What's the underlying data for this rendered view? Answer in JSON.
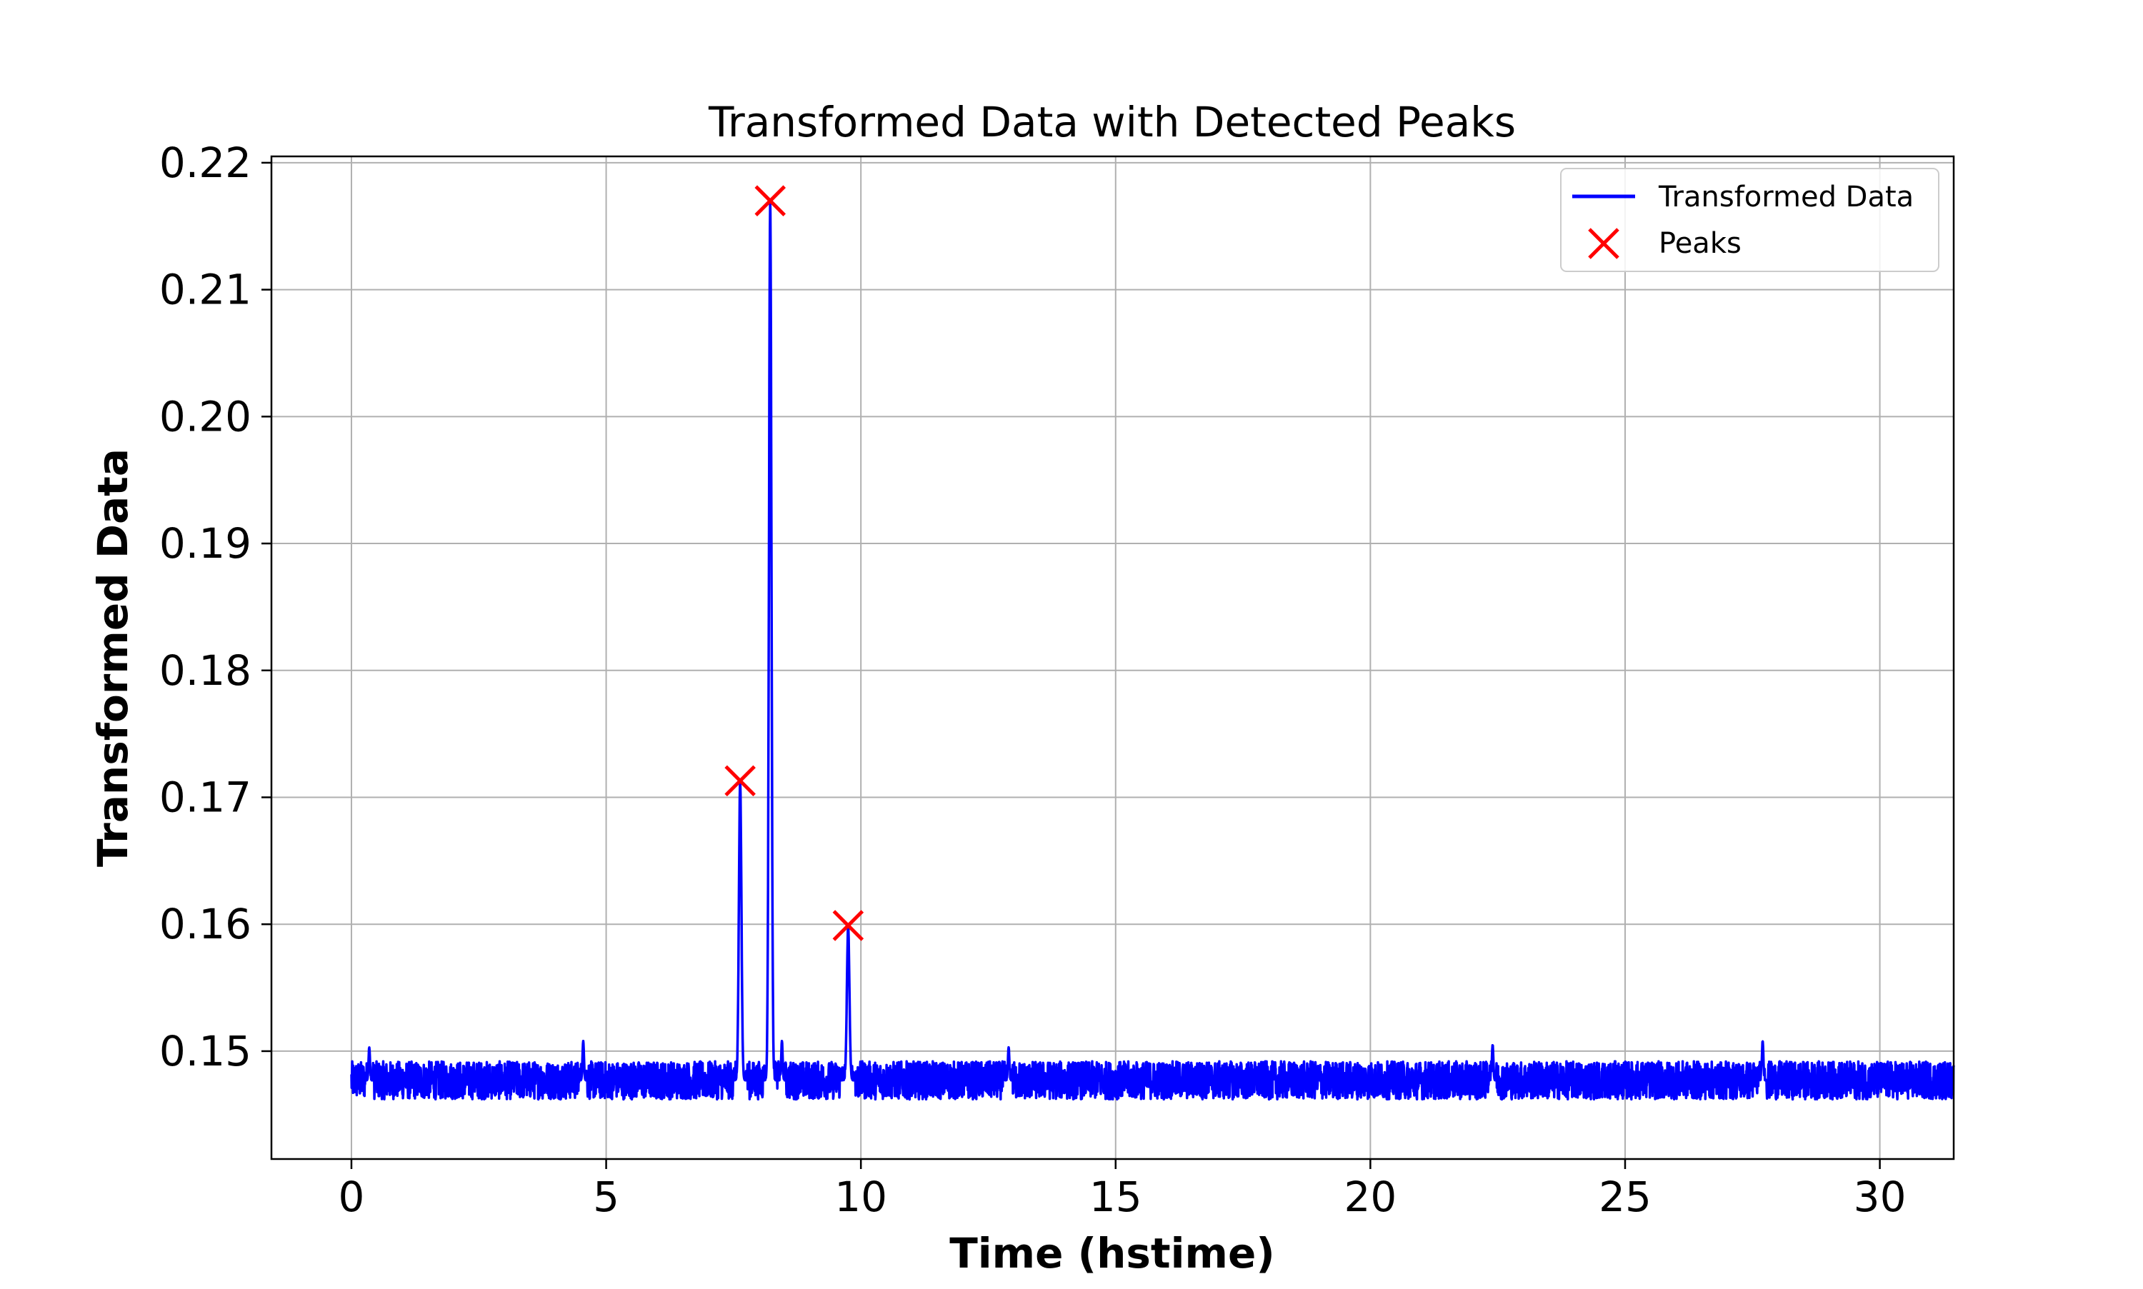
{
  "chart_data": {
    "type": "line",
    "title": "Transformed Data with Detected Peaks",
    "xlabel": "Time (hstime)",
    "ylabel": "Transformed Data",
    "xlim": [
      -1.57,
      31.45
    ],
    "ylim": [
      0.1415,
      0.2205
    ],
    "xticks": [
      0,
      5,
      10,
      15,
      20,
      25,
      30
    ],
    "xtick_labels": [
      "0",
      "5",
      "10",
      "15",
      "20",
      "25",
      "30"
    ],
    "yticks": [
      0.15,
      0.16,
      0.17,
      0.18,
      0.19,
      0.2,
      0.21,
      0.22
    ],
    "ytick_labels": [
      "0.15",
      "0.16",
      "0.17",
      "0.18",
      "0.19",
      "0.20",
      "0.21",
      "0.22"
    ],
    "grid": true,
    "legend_position": "top-right",
    "series": [
      {
        "name": "Transformed Data",
        "style": "line",
        "color": "#0000ff",
        "x_range": [
          0,
          31.45
        ],
        "baseline": 0.1477,
        "noise_band": [
          0.146,
          0.149
        ],
        "features": [
          {
            "x": 0.35,
            "y": 0.1503
          },
          {
            "x": 4.55,
            "y": 0.1508
          },
          {
            "x": 7.63,
            "y": 0.1712
          },
          {
            "x": 8.22,
            "y": 0.217
          },
          {
            "x": 8.45,
            "y": 0.1508
          },
          {
            "x": 9.75,
            "y": 0.1598
          },
          {
            "x": 12.9,
            "y": 0.1503
          },
          {
            "x": 22.4,
            "y": 0.1505
          },
          {
            "x": 27.7,
            "y": 0.1508
          }
        ]
      },
      {
        "name": "Peaks",
        "style": "marker-x",
        "color": "#ff0000",
        "points": [
          {
            "x": 7.63,
            "y": 0.1713
          },
          {
            "x": 8.22,
            "y": 0.217
          },
          {
            "x": 9.75,
            "y": 0.1599
          }
        ]
      }
    ]
  }
}
